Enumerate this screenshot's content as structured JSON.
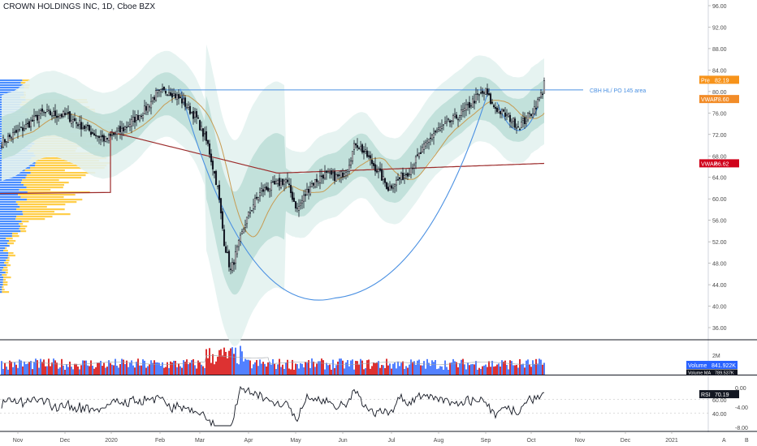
{
  "header": {
    "title": "CROWN HOLDINGS INC, 1D, Cboe BZX"
  },
  "colors": {
    "up": "#2962ff",
    "down": "#d50000",
    "band_outer": "#e3f2ef",
    "band_inner": "#b9dcd6",
    "vwap_line": "#9c2b2b",
    "ma_line": "#c79b52",
    "arc_line": "#4a90e2",
    "hline": "#4a90e2",
    "vp_up": "#2979ff",
    "vp_down": "#ffc629",
    "pre_badge": "#f7931a",
    "vwap_badge": "#f28c28",
    "vwap2_badge": "#d0021b",
    "volume_badge": "#2962ff",
    "rsi_badge": "#131722",
    "rsi_line": "#131722"
  },
  "chart_data": [
    {
      "type": "candlestick",
      "name": "price",
      "x_ticks": [
        "Nov",
        "Dec",
        "2020",
        "Feb",
        "Mar",
        "Apr",
        "May",
        "Jun",
        "Jul",
        "Aug",
        "Sep",
        "Oct",
        "Nov",
        "Dec",
        "2021"
      ],
      "y_ticks": [
        "96.00",
        "92.00",
        "88.00",
        "84.00",
        "80.00",
        "76.00",
        "72.00",
        "68.00",
        "64.00",
        "60.00",
        "56.00",
        "52.00",
        "48.00",
        "44.00",
        "40.00",
        "36.00"
      ],
      "ylim": [
        33,
        97
      ],
      "closes_keypoints": [
        [
          0,
          70.5
        ],
        [
          15,
          73.5
        ],
        [
          25,
          76
        ],
        [
          40,
          75.5
        ],
        [
          55,
          72.5
        ],
        [
          64,
          71
        ],
        [
          75,
          73
        ],
        [
          88,
          76.5
        ],
        [
          95,
          79.5
        ],
        [
          103,
          80.2
        ],
        [
          112,
          78
        ],
        [
          120,
          75
        ],
        [
          127,
          70
        ],
        [
          133,
          62
        ],
        [
          137,
          52
        ],
        [
          141,
          46.5
        ],
        [
          145,
          50.5
        ],
        [
          150,
          55.5
        ],
        [
          155,
          59
        ],
        [
          160,
          61.5
        ],
        [
          168,
          62.5
        ],
        [
          175,
          63.5
        ],
        [
          182,
          58
        ],
        [
          190,
          62.5
        ],
        [
          198,
          64.5
        ],
        [
          208,
          64
        ],
        [
          213,
          66
        ],
        [
          218,
          70.5
        ],
        [
          225,
          68
        ],
        [
          232,
          65
        ],
        [
          238,
          62
        ],
        [
          244,
          63.5
        ],
        [
          250,
          65
        ],
        [
          258,
          68.5
        ],
        [
          265,
          72
        ],
        [
          272,
          73.5
        ],
        [
          279,
          75
        ],
        [
          285,
          76.5
        ],
        [
          292,
          78.8
        ],
        [
          298,
          80
        ],
        [
          302,
          77.5
        ],
        [
          308,
          76
        ],
        [
          313,
          75
        ],
        [
          318,
          73.5
        ],
        [
          322,
          74.5
        ],
        [
          326,
          76
        ],
        [
          330,
          78
        ],
        [
          333,
          80
        ],
        [
          334,
          82
        ]
      ],
      "annotations": {
        "hline_label": "CBH HL/ PO 145 area",
        "hline_value": 80.3
      },
      "price_badges": [
        {
          "label": "Pre",
          "value": "82.19",
          "y": 82.19
        },
        {
          "label": "VWAP",
          "value": "78.60",
          "y": 78.6
        },
        {
          "label": "VWAP",
          "value": "66.62",
          "y": 66.62
        }
      ]
    },
    {
      "type": "bar",
      "name": "volume",
      "y_ticks": [
        "2M"
      ],
      "badges": [
        {
          "label": "Volume",
          "value": "841.922K"
        },
        {
          "label": "Volume MA",
          "value": "789.537K"
        }
      ]
    },
    {
      "type": "line",
      "name": "RSI",
      "y_ticks_left": [
        "60.00",
        "40.00"
      ],
      "y_ticks_right": [
        "0.00",
        "-4.00",
        "-8.00"
      ],
      "ylim": [
        15,
        95
      ],
      "value_badge": {
        "label": "RSI",
        "value": "70.19"
      }
    }
  ],
  "footer": {
    "auto_label": "A",
    "log_label": "B"
  }
}
